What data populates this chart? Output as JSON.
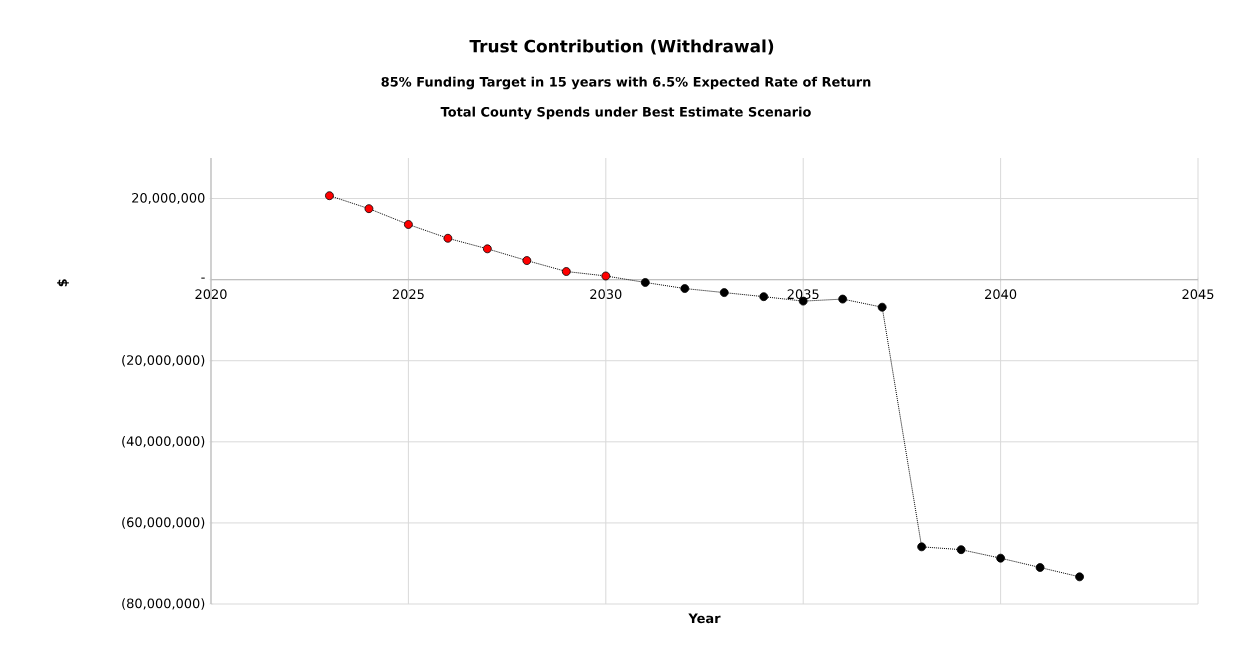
{
  "chart_data": {
    "type": "line",
    "title": "Trust Contribution (Withdrawal)",
    "subtitle": "85% Funding Target in 15 years with 6.5% Expected Rate of Return",
    "annotations": [
      "Total County Spends under Best Estimate Scenario"
    ],
    "xlabel": "Year",
    "ylabel": "$",
    "x": [
      2023,
      2024,
      2025,
      2026,
      2027,
      2028,
      2029,
      2030,
      2031,
      2032,
      2033,
      2034,
      2035,
      2036,
      2037,
      2038,
      2039,
      2040,
      2041,
      2042
    ],
    "series": [
      {
        "color": "#000000",
        "values": [
          20700000,
          17500000,
          13600000,
          10200000,
          7600000,
          4700000,
          2000000,
          900000,
          -700000,
          -2200000,
          -3200000,
          -4200000,
          -5300000,
          -4800000,
          -6800000,
          -65900000,
          -66600000,
          -68700000,
          -71000000,
          -73300000
        ],
        "colors": [
          "#ff0000",
          "#ff0000",
          "#ff0000",
          "#ff0000",
          "#ff0000",
          "#ff0000",
          "#ff0000",
          "#ff0000",
          "#000000",
          "#000000",
          "#000000",
          "#000000",
          "#000000",
          "#000000",
          "#000000",
          "#000000",
          "#000000",
          "#000000",
          "#000000",
          "#000000"
        ]
      }
    ],
    "xlim": [
      2020,
      2045
    ],
    "xticks": [
      2020,
      2025,
      2030,
      2035,
      2040,
      2045
    ],
    "ylim": [
      -80000000,
      30000000
    ],
    "yticks": [
      {
        "value": -80000000,
        "label": "(80,000,000)"
      },
      {
        "value": -60000000,
        "label": "(60,000,000)"
      },
      {
        "value": -40000000,
        "label": "(40,000,000)"
      },
      {
        "value": -20000000,
        "label": "(20,000,000)"
      },
      {
        "value": 0,
        "label": "-"
      },
      {
        "value": 20000000,
        "label": "20,000,000"
      }
    ],
    "grid": true,
    "marker": "circle",
    "line_style": "dotted"
  }
}
